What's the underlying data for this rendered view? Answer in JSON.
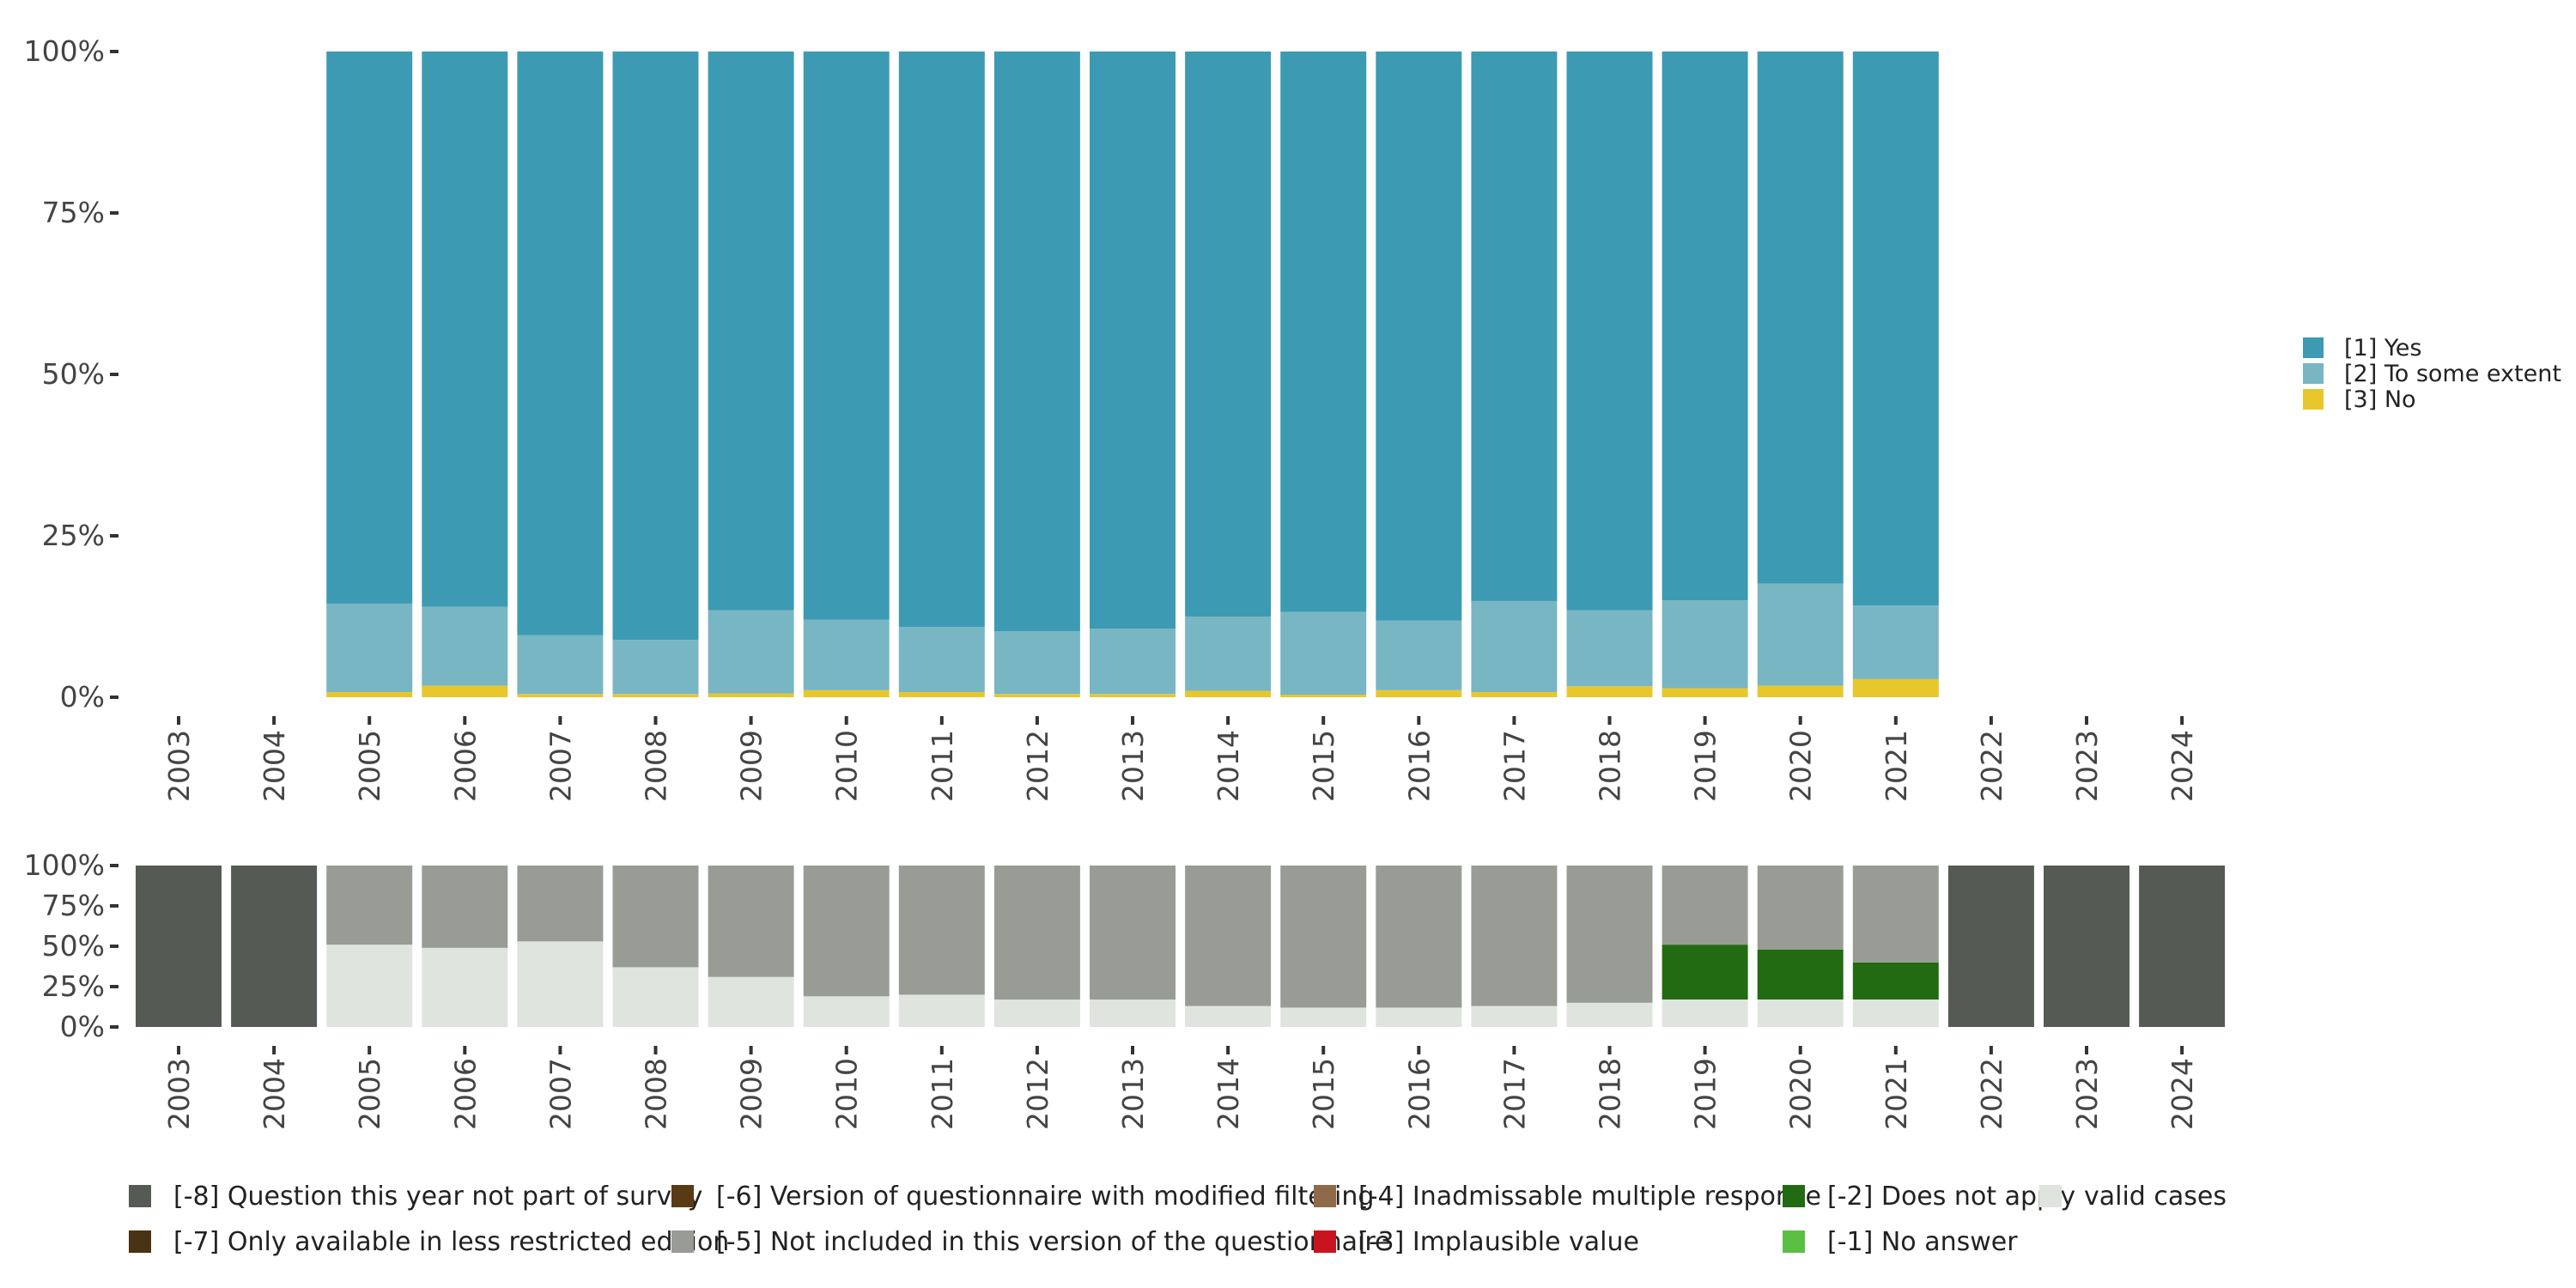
{
  "chart_data": [
    {
      "type": "bar",
      "stacked": true,
      "normalized": true,
      "categories": [
        "2003",
        "2004",
        "2005",
        "2006",
        "2007",
        "2008",
        "2009",
        "2010",
        "2011",
        "2012",
        "2013",
        "2014",
        "2015",
        "2016",
        "2017",
        "2018",
        "2019",
        "2020",
        "2021",
        "2022",
        "2023",
        "2024"
      ],
      "yticks": [
        "0%",
        "25%",
        "50%",
        "75%",
        "100%"
      ],
      "ylim": [
        0,
        100
      ],
      "legend_position": "right",
      "series": [
        {
          "name": "[3] No",
          "color": "#E8C72C",
          "values": [
            null,
            null,
            0.8,
            1.8,
            0.5,
            0.5,
            0.6,
            1.1,
            0.8,
            0.5,
            0.5,
            1.0,
            0.4,
            1.1,
            0.8,
            1.7,
            1.4,
            1.8,
            2.8,
            null,
            null,
            null
          ]
        },
        {
          "name": "[2] To some extent",
          "color": "#78B6C4",
          "values": [
            null,
            null,
            13.7,
            12.2,
            9.1,
            8.4,
            12.9,
            10.9,
            10.1,
            9.7,
            10.1,
            11.5,
            12.8,
            10.8,
            14.1,
            11.8,
            13.6,
            15.8,
            11.4,
            null,
            null,
            null
          ]
        },
        {
          "name": "[1] Yes",
          "color": "#3D9AB3",
          "values": [
            null,
            null,
            85.5,
            86.0,
            90.4,
            91.1,
            86.5,
            88.0,
            89.1,
            89.8,
            89.4,
            87.5,
            86.8,
            88.1,
            85.1,
            86.5,
            85.0,
            82.4,
            85.8,
            null,
            null,
            null
          ]
        }
      ]
    },
    {
      "type": "bar",
      "stacked": true,
      "normalized": true,
      "categories": [
        "2003",
        "2004",
        "2005",
        "2006",
        "2007",
        "2008",
        "2009",
        "2010",
        "2011",
        "2012",
        "2013",
        "2014",
        "2015",
        "2016",
        "2017",
        "2018",
        "2019",
        "2020",
        "2021",
        "2022",
        "2023",
        "2024"
      ],
      "yticks": [
        "0%",
        "25%",
        "50%",
        "75%",
        "100%"
      ],
      "ylim": [
        0,
        100
      ],
      "legend_position": "bottom",
      "legend": [
        {
          "name": "[-8] Question this year not part of survey",
          "color": "#555B54"
        },
        {
          "name": "[-7] Only available in less restricted edition",
          "color": "#4A3214"
        },
        {
          "name": "[-6] Version of questionnaire with modified filtering",
          "color": "#5A3A14"
        },
        {
          "name": "[-5] Not included in this version of the questionnaire",
          "color": "#989C95"
        },
        {
          "name": "[-4] Inadmissable multiple response",
          "color": "#8E6A48"
        },
        {
          "name": "[-3] Implausible value",
          "color": "#C8141E"
        },
        {
          "name": "[-2] Does not apply",
          "color": "#236B12"
        },
        {
          "name": "[-1] No answer",
          "color": "#5CBF45"
        },
        {
          "name": "valid cases",
          "color": "#E0E4DF"
        }
      ],
      "series": [
        {
          "name": "valid cases",
          "color": "#E0E4DF",
          "values": [
            0,
            0,
            51,
            49,
            53,
            37,
            31,
            19,
            20,
            17,
            17,
            13,
            12,
            12,
            13,
            15,
            17,
            17,
            17,
            0,
            0,
            0
          ]
        },
        {
          "name": "[-2] Does not apply",
          "color": "#236B12",
          "values": [
            0,
            0,
            0,
            0,
            0,
            0,
            0,
            0,
            0,
            0,
            0,
            0,
            0,
            0,
            0,
            0,
            34,
            31,
            23,
            0,
            0,
            0
          ]
        },
        {
          "name": "[-5] Not included in this version of the questionnaire",
          "color": "#989C95",
          "values": [
            0,
            0,
            49,
            51,
            47,
            63,
            69,
            81,
            80,
            83,
            83,
            87,
            88,
            88,
            87,
            85,
            49,
            52,
            60,
            0,
            0,
            0
          ]
        },
        {
          "name": "[-8] Question this year not part of survey",
          "color": "#555B54",
          "values": [
            100,
            100,
            0,
            0,
            0,
            0,
            0,
            0,
            0,
            0,
            0,
            0,
            0,
            0,
            0,
            0,
            0,
            0,
            0,
            100,
            100,
            100
          ]
        }
      ]
    }
  ]
}
